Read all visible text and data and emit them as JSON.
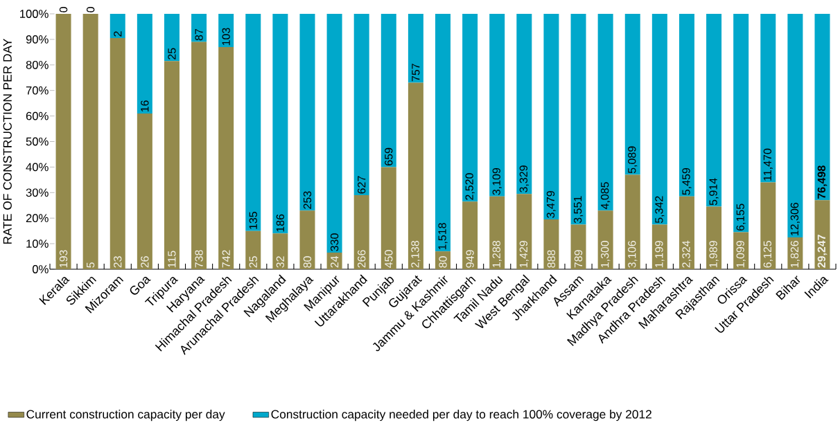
{
  "chart_data": {
    "type": "bar",
    "stacked": true,
    "ylabel": "RATE OF CONSTRUCTION PER DAY",
    "categories": [
      "Kerala",
      "Sikkim",
      "Mizoram",
      "Goa",
      "Tripura",
      "Haryana",
      "Himachal Pradesh",
      "Arunachal Pradesh",
      "Nagaland",
      "Meghalaya",
      "Manipur",
      "Uttarakhand",
      "Punjab",
      "Gujarat",
      "Jammu & Kashmir",
      "Chhattisgarh",
      "Tamil Nadu",
      "West Bengal",
      "Jharkhand",
      "Assam",
      "Karnataka",
      "Madhya Pradesh",
      "Andhra Pradesh",
      "Maharashtra",
      "Rajasthan",
      "Orissa",
      "Uttar Pradesh",
      "Bihar",
      "India"
    ],
    "series": [
      {
        "name": "Current construction capacity per day",
        "color": "#948a4c",
        "values": [
          100,
          100,
          90.5,
          61,
          81.5,
          89,
          87,
          15,
          14,
          23,
          6.5,
          29,
          40,
          73,
          7,
          26.5,
          28.5,
          29.5,
          19.5,
          17.5,
          23,
          37,
          17.5,
          28.5,
          24.5,
          14.5,
          34,
          12.5,
          27
        ]
      },
      {
        "name": "Construction capacity needed per day to reach 100% coverage by 2012",
        "color": "#00a8cb",
        "values": [
          0,
          0,
          9.5,
          39,
          18.5,
          11,
          13,
          85,
          86,
          77,
          93.5,
          71,
          60,
          27,
          93,
          73.5,
          71.5,
          70.5,
          80.5,
          82.5,
          77,
          63,
          82.5,
          71.5,
          75.5,
          85.5,
          66,
          87.5,
          73
        ]
      }
    ],
    "annotations": [
      {
        "text": "193",
        "x": "Kerala",
        "y": 0
      },
      {
        "text": "5",
        "x": "Sikkim",
        "y": 0
      },
      {
        "text": "23",
        "x": "Mizoram",
        "y": 0
      },
      {
        "text": "26",
        "x": "Goa",
        "y": 0
      },
      {
        "text": "115",
        "x": "Tripura",
        "y": 0
      },
      {
        "text": "738",
        "x": "Haryana",
        "y": 0
      },
      {
        "text": "742",
        "x": "Himachal Pradesh",
        "y": 0
      },
      {
        "text": "25",
        "x": "Arunachal Pradesh",
        "y": 0
      },
      {
        "text": "32",
        "x": "Nagaland",
        "y": 0
      },
      {
        "text": "80",
        "x": "Meghalaya",
        "y": 0
      },
      {
        "text": "24",
        "x": "Manipur",
        "y": 0
      },
      {
        "text": "266",
        "x": "Uttarakhand",
        "y": 0
      },
      {
        "text": "450",
        "x": "Punjab",
        "y": 0
      },
      {
        "text": "2,138",
        "x": "Gujarat",
        "y": 0
      },
      {
        "text": "80",
        "x": "Jammu & Kashmir",
        "y": 0
      },
      {
        "text": "949",
        "x": "Chhattisgarh",
        "y": 0
      },
      {
        "text": "1,288",
        "x": "Tamil Nadu",
        "y": 0
      },
      {
        "text": "1,429",
        "x": "West Bengal",
        "y": 0
      },
      {
        "text": "888",
        "x": "Jharkhand",
        "y": 0
      },
      {
        "text": "789",
        "x": "Assam",
        "y": 0
      },
      {
        "text": "1,300",
        "x": "Karnataka",
        "y": 0
      },
      {
        "text": "3,106",
        "x": "Madhya Pradesh",
        "y": 0
      },
      {
        "text": "1,199",
        "x": "Andhra Pradesh",
        "y": 0
      },
      {
        "text": "2,324",
        "x": "Maharashtra",
        "y": 0
      },
      {
        "text": "1,989",
        "x": "Rajasthan",
        "y": 0
      },
      {
        "text": "1,099",
        "x": "Orissa",
        "y": 0
      },
      {
        "text": "6,125",
        "x": "Uttar Pradesh",
        "y": 0
      },
      {
        "text": "1,826",
        "x": "Bihar",
        "y": 0
      },
      {
        "text": "**29,247**",
        "x": "India",
        "y": 0
      },
      {
        "text": "0",
        "x": "Kerala",
        "y": 100
      },
      {
        "text": "0",
        "x": "Sikkim",
        "y": 100
      },
      {
        "text": "2",
        "x": "Mizoram",
        "y": 90.5
      },
      {
        "text": "16",
        "x": "Goa",
        "y": 61
      },
      {
        "text": "25",
        "x": "Tripura",
        "y": 81.5
      },
      {
        "text": "87",
        "x": "Haryana",
        "y": 89
      },
      {
        "text": "103",
        "x": "Himachal Pradesh",
        "y": 87
      },
      {
        "text": "135",
        "x": "Arunachal Pradesh",
        "y": 15
      },
      {
        "text": "186",
        "x": "Nagaland",
        "y": 14
      },
      {
        "text": "253",
        "x": "Meghalaya",
        "y": 23
      },
      {
        "text": "330",
        "x": "Manipur",
        "y": 6.5
      },
      {
        "text": "627",
        "x": "Uttarakhand",
        "y": 29
      },
      {
        "text": "659",
        "x": "Punjab",
        "y": 40
      },
      {
        "text": "757",
        "x": "Gujarat",
        "y": 73
      },
      {
        "text": "1,518",
        "x": "Jammu & Kashmir",
        "y": 7
      },
      {
        "text": "2,520",
        "x": "Chhattisgarh",
        "y": 26.5
      },
      {
        "text": "3,109",
        "x": "Tamil Nadu",
        "y": 28.5
      },
      {
        "text": "3,329",
        "x": "West Bengal",
        "y": 29.5
      },
      {
        "text": "3,479",
        "x": "Jharkhand",
        "y": 19.5
      },
      {
        "text": "3,551",
        "x": "Assam",
        "y": 17.5
      },
      {
        "text": "4,085",
        "x": "Karnataka",
        "y": 23
      },
      {
        "text": "5,089",
        "x": "Madhya Pradesh",
        "y": 37
      },
      {
        "text": "5,342",
        "x": "Andhra Pradesh",
        "y": 17.5
      },
      {
        "text": "5,459",
        "x": "Maharashtra",
        "y": 28.5
      },
      {
        "text": "5,914",
        "x": "Rajasthan",
        "y": 24.5
      },
      {
        "text": "6,155",
        "x": "Orissa",
        "y": 14.5
      },
      {
        "text": "11,470",
        "x": "Uttar Pradesh",
        "y": 34
      },
      {
        "text": "12,306",
        "x": "Bihar",
        "y": 12.5
      },
      {
        "text": "**76,498**",
        "x": "India",
        "y": 27
      }
    ],
    "ylim": [
      0,
      100
    ],
    "yticks": [
      {
        "value": 0,
        "label": "0%"
      },
      {
        "value": 10,
        "label": "10%"
      },
      {
        "value": 20,
        "label": "20%"
      },
      {
        "value": 30,
        "label": "30%"
      },
      {
        "value": 40,
        "label": "40%"
      },
      {
        "value": 50,
        "label": "50%"
      },
      {
        "value": 60,
        "label": "60%"
      },
      {
        "value": 70,
        "label": "70%"
      },
      {
        "value": 80,
        "label": "80%"
      },
      {
        "value": 90,
        "label": "90%"
      },
      {
        "value": 100,
        "label": "100%"
      }
    ],
    "legend": "bottom"
  }
}
